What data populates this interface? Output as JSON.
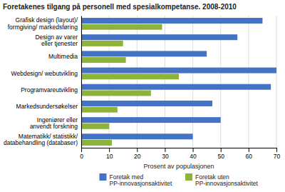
{
  "chart_data": {
    "type": "bar",
    "orientation": "horizontal",
    "title": "Foretakenes tilgang på personell med spesialkompetanse. 2008-2010",
    "categories": [
      "Grafisk design (layout)/\nformgiving/ markedsføring",
      "Design av varer\neller tjenester",
      "Multimedia",
      "Webdesign/ webutvikling",
      "Programvareutvikling",
      "Markedsundersøkelser",
      "Ingeniører eller\nanvendt forskning",
      "Matematikk/ statistikk/\ndatabehandling (databaser)"
    ],
    "series": [
      {
        "name": "Foretak med\nPP-innovasjonsaktivitet",
        "color": "#4472C4",
        "values": [
          65,
          56,
          45,
          70,
          68,
          47,
          50,
          40
        ]
      },
      {
        "name": "Foretak uten\nPP-innovasjonsaktivitet",
        "color": "#8DB33A",
        "values": [
          29,
          15,
          16,
          35,
          25,
          13,
          10,
          11
        ]
      }
    ],
    "xlabel": "Prosent av populasjonen",
    "xlim": [
      0,
      70
    ],
    "xticks": [
      0,
      10,
      20,
      30,
      40,
      50,
      60,
      70
    ],
    "grid": true,
    "legend": "bottom"
  }
}
